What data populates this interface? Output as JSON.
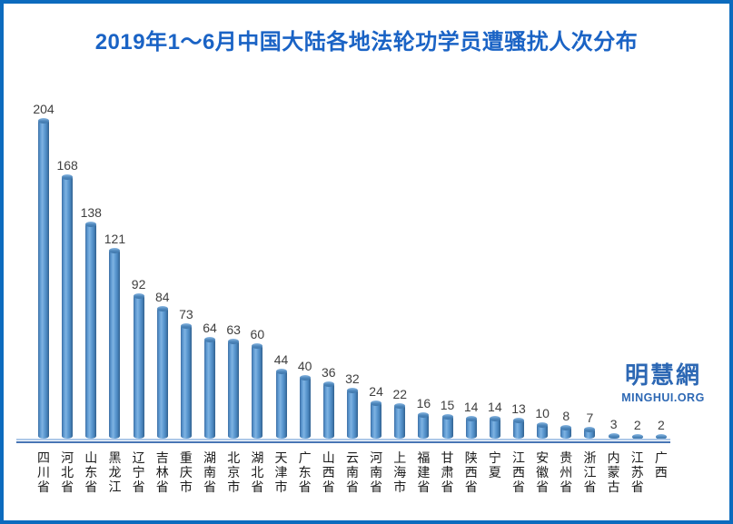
{
  "page": {
    "border_color": "#0c6bbe",
    "background_color": "#ffffff",
    "title_color": "#1a63c5"
  },
  "watermark": {
    "cjk": "明慧網",
    "latin": "MINGHUI.ORG",
    "color": "#2d68b4"
  },
  "chart_data": {
    "type": "bar",
    "title": "2019年1～6月中国大陆各地法轮功学员遭骚扰人次分布",
    "categories": [
      "四川省",
      "河北省",
      "山东省",
      "黑龙江",
      "辽宁省",
      "吉林省",
      "重庆市",
      "湖南省",
      "北京市",
      "湖北省",
      "天津市",
      "广东省",
      "山西省",
      "云南省",
      "河南省",
      "上海市",
      "福建省",
      "甘肃省",
      "陕西省",
      "宁夏",
      "江西省",
      "安徽省",
      "贵州省",
      "浙江省",
      "内蒙古",
      "江苏省",
      "广西"
    ],
    "values": [
      204,
      168,
      138,
      121,
      92,
      84,
      73,
      64,
      63,
      60,
      44,
      40,
      36,
      32,
      24,
      22,
      16,
      15,
      14,
      14,
      13,
      10,
      8,
      7,
      3,
      2,
      2
    ],
    "xlabel": "",
    "ylabel": "",
    "ylim": [
      0,
      210
    ],
    "grid": false,
    "legend": null,
    "data_labels": true,
    "orientation": "vertical",
    "bar_style": "cylinder",
    "bar_color": "#5b9bd5",
    "bar_edge_color": "#34648f",
    "value_label_color": "#3f3f3f",
    "category_label_color": "#1a1a1a",
    "axis_line_color": "#4775b5",
    "axis_line_light_color": "#adc8e8"
  }
}
